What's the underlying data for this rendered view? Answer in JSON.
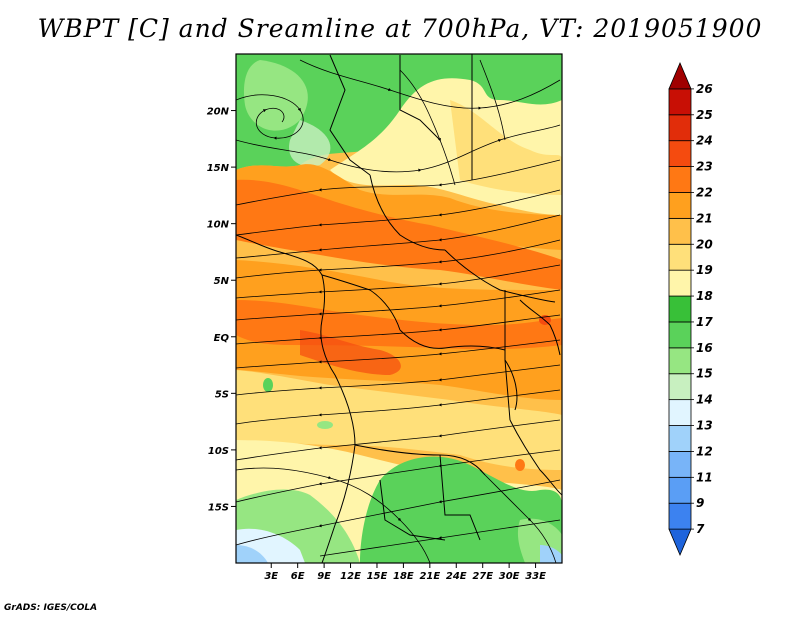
{
  "title": "WBPT [C] and Sreamline at 700hPa, VT: 2019051900",
  "credit": "GrADS: IGES/COLA",
  "map": {
    "lon_range": [
      -1,
      36
    ],
    "lat_range": [
      -20,
      25
    ],
    "lon_ticks": [
      {
        "lon": 3,
        "label": "3E"
      },
      {
        "lon": 6,
        "label": "6E"
      },
      {
        "lon": 9,
        "label": "9E"
      },
      {
        "lon": 12,
        "label": "12E"
      },
      {
        "lon": 15,
        "label": "15E"
      },
      {
        "lon": 18,
        "label": "18E"
      },
      {
        "lon": 21,
        "label": "21E"
      },
      {
        "lon": 24,
        "label": "24E"
      },
      {
        "lon": 27,
        "label": "27E"
      },
      {
        "lon": 30,
        "label": "30E"
      },
      {
        "lon": 33,
        "label": "33E"
      }
    ],
    "lat_ticks": [
      {
        "lat": 20,
        "label": "20N"
      },
      {
        "lat": 15,
        "label": "15N"
      },
      {
        "lat": 10,
        "label": "10N"
      },
      {
        "lat": 5,
        "label": "5N"
      },
      {
        "lat": 0,
        "label": "EQ"
      },
      {
        "lat": -5,
        "label": "5S"
      },
      {
        "lat": -10,
        "label": "10S"
      },
      {
        "lat": -15,
        "label": "15S"
      }
    ]
  },
  "colorbar": {
    "levels": [
      "7",
      "9",
      "11",
      "12",
      "13",
      "14",
      "15",
      "16",
      "17",
      "18",
      "19",
      "20",
      "21",
      "22",
      "23",
      "24",
      "25",
      "26"
    ],
    "colors": [
      "#1e64dc",
      "#3c82f0",
      "#5a9ef5",
      "#78b4f8",
      "#a0d2fa",
      "#e1f5ff",
      "#c8f0c0",
      "#96e682",
      "#5ad25a",
      "#38c038",
      "#fff5aa",
      "#ffe07a",
      "#ffc04a",
      "#ffa01e",
      "#ff7814",
      "#f54b0f",
      "#e12d0a",
      "#c80f05",
      "#a00000"
    ]
  }
}
